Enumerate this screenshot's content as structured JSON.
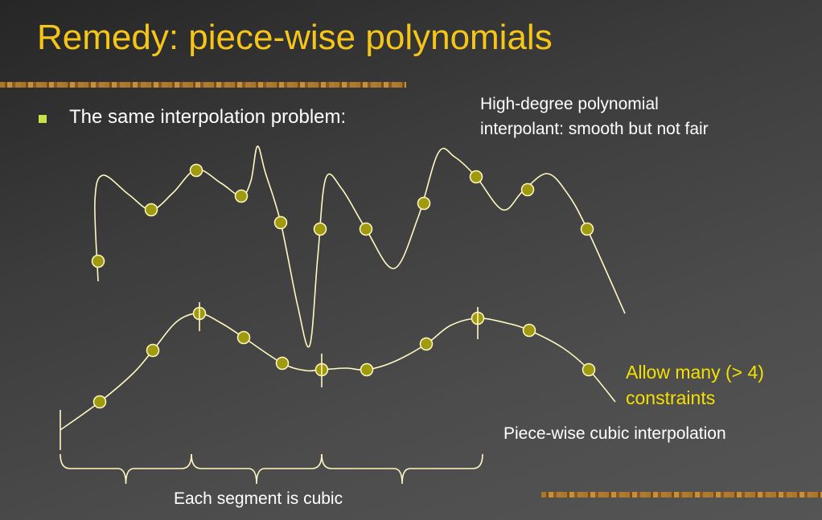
{
  "title": "Remedy: piece-wise polynomials",
  "bullets": [
    "The same interpolation problem:"
  ],
  "annotations": {
    "high_degree": [
      "High-degree polynomial",
      "interpolant: smooth but not fair"
    ],
    "constraints": [
      "Allow many (> 4)",
      "constraints"
    ],
    "piecewise": "Piece-wise cubic interpolation",
    "segments": "Each segment is cubic"
  }
}
